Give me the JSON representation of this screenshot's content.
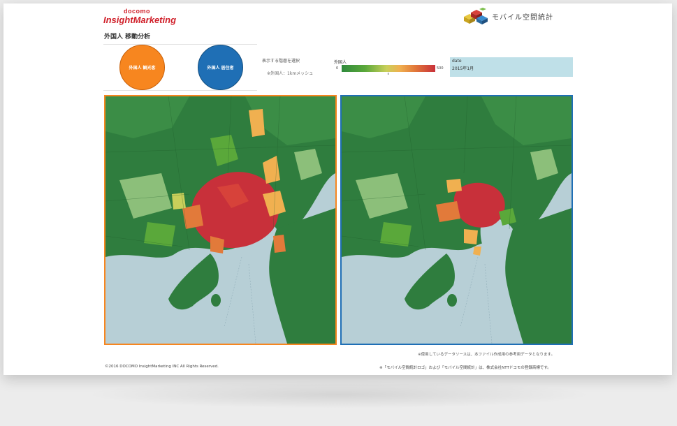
{
  "header": {
    "brand_top": "docomo",
    "brand_main": "InsightMarketing",
    "page_title": "外国人 移動分析",
    "logo_text": "モバイル空間統計"
  },
  "buttons": {
    "tourist": "外国人 観光客",
    "resident": "外国人 居住者"
  },
  "selector": {
    "label": "表示する階層を選択",
    "option": "※外国人：1kmメッシュ"
  },
  "legend": {
    "title": "外国人",
    "min": "0",
    "max": "500",
    "colors": [
      "#2f8a3c",
      "#5aa83a",
      "#c9cf5a",
      "#f0b050",
      "#e27a3a",
      "#c8303a"
    ]
  },
  "date_filter": {
    "label": "date",
    "value": "2015年1月"
  },
  "maps": {
    "left": {
      "border_color": "#f7861f"
    },
    "right": {
      "border_color": "#1f6fb5"
    }
  },
  "footer": {
    "note1": "※使用しているデータソースは、本ファイル作成用の参考用データとなります。",
    "copyright": "©2016 DOCOMO InsightMarketing INC All Rights Reserved.",
    "note2": "※「モバイル空間統計ロゴ」および「モバイル空間統計」は、株式会社NTTドコモの登録商標です。"
  }
}
